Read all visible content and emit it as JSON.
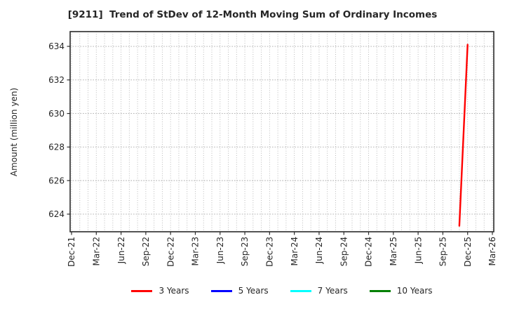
{
  "title": "[9211]  Trend of StDev of 12-Month Moving Sum of Ordinary Incomes",
  "chart_data": {
    "type": "line",
    "title": "[9211]  Trend of StDev of 12-Month Moving Sum of Ordinary Incomes",
    "xlabel": "",
    "ylabel": "Amount (million yen)",
    "x_tick_labels": [
      "Dec-21",
      "Mar-22",
      "Jun-22",
      "Sep-22",
      "Dec-22",
      "Mar-23",
      "Jun-23",
      "Sep-23",
      "Dec-23",
      "Mar-24",
      "Jun-24",
      "Sep-24",
      "Dec-24",
      "Mar-25",
      "Jun-25",
      "Sep-25",
      "Dec-25",
      "Mar-26"
    ],
    "months_per_x_tick": 3,
    "x_axis_total_months": 51,
    "y_ticks": [
      624,
      626,
      628,
      630,
      632,
      634
    ],
    "ylim": [
      622.95,
      634.88
    ],
    "grid": "dotted gray, monthly vertical lines and horizontal lines at each y tick",
    "legend_position": "bottom-center",
    "axis_color": "#2b2b2b",
    "grid_color": "#b3b3b3",
    "series": [
      {
        "name": "3 Years",
        "color": "#ff0000",
        "points": [
          {
            "label": "Nov-25",
            "month_index": 47,
            "value": 623.3
          },
          {
            "label": "Dec-25",
            "month_index": 48,
            "value": 634.1
          }
        ]
      },
      {
        "name": "5 Years",
        "color": "#0000ff",
        "points": []
      },
      {
        "name": "7 Years",
        "color": "#00ffff",
        "points": []
      },
      {
        "name": "10 Years",
        "color": "#008000",
        "points": []
      }
    ]
  }
}
